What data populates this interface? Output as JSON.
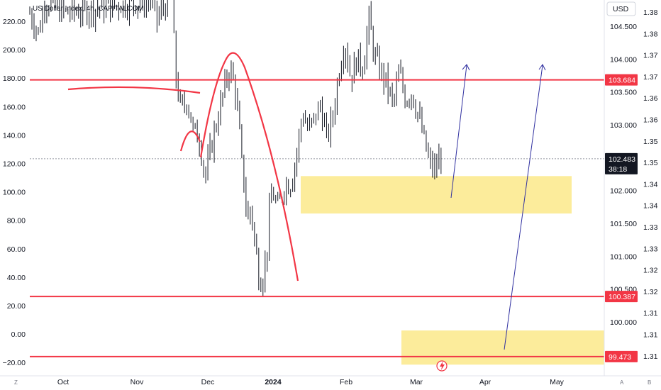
{
  "header": {
    "title": "US Dollar Index, 4h, CAPITALCOM",
    "currency": "USD"
  },
  "chart_data": {
    "type": "candlestick",
    "left_axis": {
      "ticks": [
        "220.00",
        "200.00",
        "180.00",
        "160.00",
        "140.00",
        "120.00",
        "100.00",
        "80.00",
        "60.00",
        "40.00",
        "20.00",
        "0.00",
        "−20.00"
      ]
    },
    "right_axis_inner": {
      "ticks": [
        "104.500",
        "104.000",
        "103.500",
        "103.000",
        "102.000",
        "101.500",
        "101.000",
        "100.500",
        "100.000"
      ],
      "range": [
        99.35,
        104.9
      ]
    },
    "right_axis_outer": {
      "ticks": [
        "1.38",
        "1.38",
        "1.37",
        "1.37",
        "1.36",
        "1.36",
        "1.35",
        "1.35",
        "1.34",
        "1.34",
        "1.33",
        "1.33",
        "1.32",
        "1.32",
        "1.31",
        "1.31",
        "1.31"
      ]
    },
    "x_axis": {
      "labels": [
        "Oct",
        "Nov",
        "Dec",
        "2024",
        "Feb",
        "Mar",
        "Apr",
        "May"
      ],
      "corner_left": "Z",
      "corner_right": [
        "A",
        "B"
      ]
    },
    "price_tags": [
      {
        "value": "103.684",
        "color": "#f23645",
        "type": "level"
      },
      {
        "value": "102.483",
        "sub": "38:18",
        "color": "#131722",
        "type": "current"
      },
      {
        "value": "100.387",
        "color": "#f23645",
        "type": "level"
      },
      {
        "value": "99.473",
        "color": "#f23645",
        "type": "level"
      }
    ],
    "horizontal_levels": [
      103.684,
      100.387,
      99.473
    ],
    "current_price": 102.483,
    "zones": [
      {
        "from": 101.65,
        "to": 102.22,
        "color": "#fbe98a"
      },
      {
        "from": 99.35,
        "to": 99.87,
        "color": "#fbe98a"
      }
    ],
    "series_path": [
      [
        0,
        104.7
      ],
      [
        3,
        104.4
      ],
      [
        5,
        104.9
      ],
      [
        8,
        104.8
      ],
      [
        12,
        104.7
      ],
      [
        40,
        104.9
      ],
      [
        42,
        104.6
      ],
      [
        44,
        104.8
      ],
      [
        47,
        104.9
      ],
      [
        48,
        103.8
      ],
      [
        50,
        103.2
      ],
      [
        52,
        103.4
      ],
      [
        54,
        102.9
      ],
      [
        56,
        102.8
      ],
      [
        58,
        102.2
      ],
      [
        60,
        102.7
      ],
      [
        62,
        103.1
      ],
      [
        64,
        103.5
      ],
      [
        66,
        103.9
      ],
      [
        68,
        103.5
      ],
      [
        69,
        103.0
      ],
      [
        70,
        102.4
      ],
      [
        71,
        102.0
      ],
      [
        72,
        101.5
      ],
      [
        73,
        101.8
      ],
      [
        74,
        101.3
      ],
      [
        76,
        100.6
      ],
      [
        78,
        100.9
      ],
      [
        79,
        101.6
      ],
      [
        80,
        102.0
      ],
      [
        82,
        101.7
      ],
      [
        84,
        102.1
      ],
      [
        86,
        102.1
      ],
      [
        88,
        102.5
      ],
      [
        90,
        103.2
      ],
      [
        92,
        102.9
      ],
      [
        94,
        103.1
      ],
      [
        96,
        103.3
      ],
      [
        98,
        102.8
      ],
      [
        100,
        103.1
      ],
      [
        102,
        103.8
      ],
      [
        104,
        104.3
      ],
      [
        106,
        103.7
      ],
      [
        108,
        104.0
      ],
      [
        110,
        103.9
      ],
      [
        112,
        104.6
      ],
      [
        114,
        104.0
      ],
      [
        116,
        103.8
      ],
      [
        118,
        103.6
      ],
      [
        120,
        103.3
      ],
      [
        122,
        103.8
      ],
      [
        124,
        103.4
      ],
      [
        126,
        103.5
      ],
      [
        128,
        103.2
      ],
      [
        130,
        102.8
      ],
      [
        132,
        102.4
      ],
      [
        134,
        102.3
      ],
      [
        136,
        102.6
      ]
    ],
    "drawings": {
      "arcs_red": 3,
      "projection_arrows": 2
    },
    "grid": false
  }
}
